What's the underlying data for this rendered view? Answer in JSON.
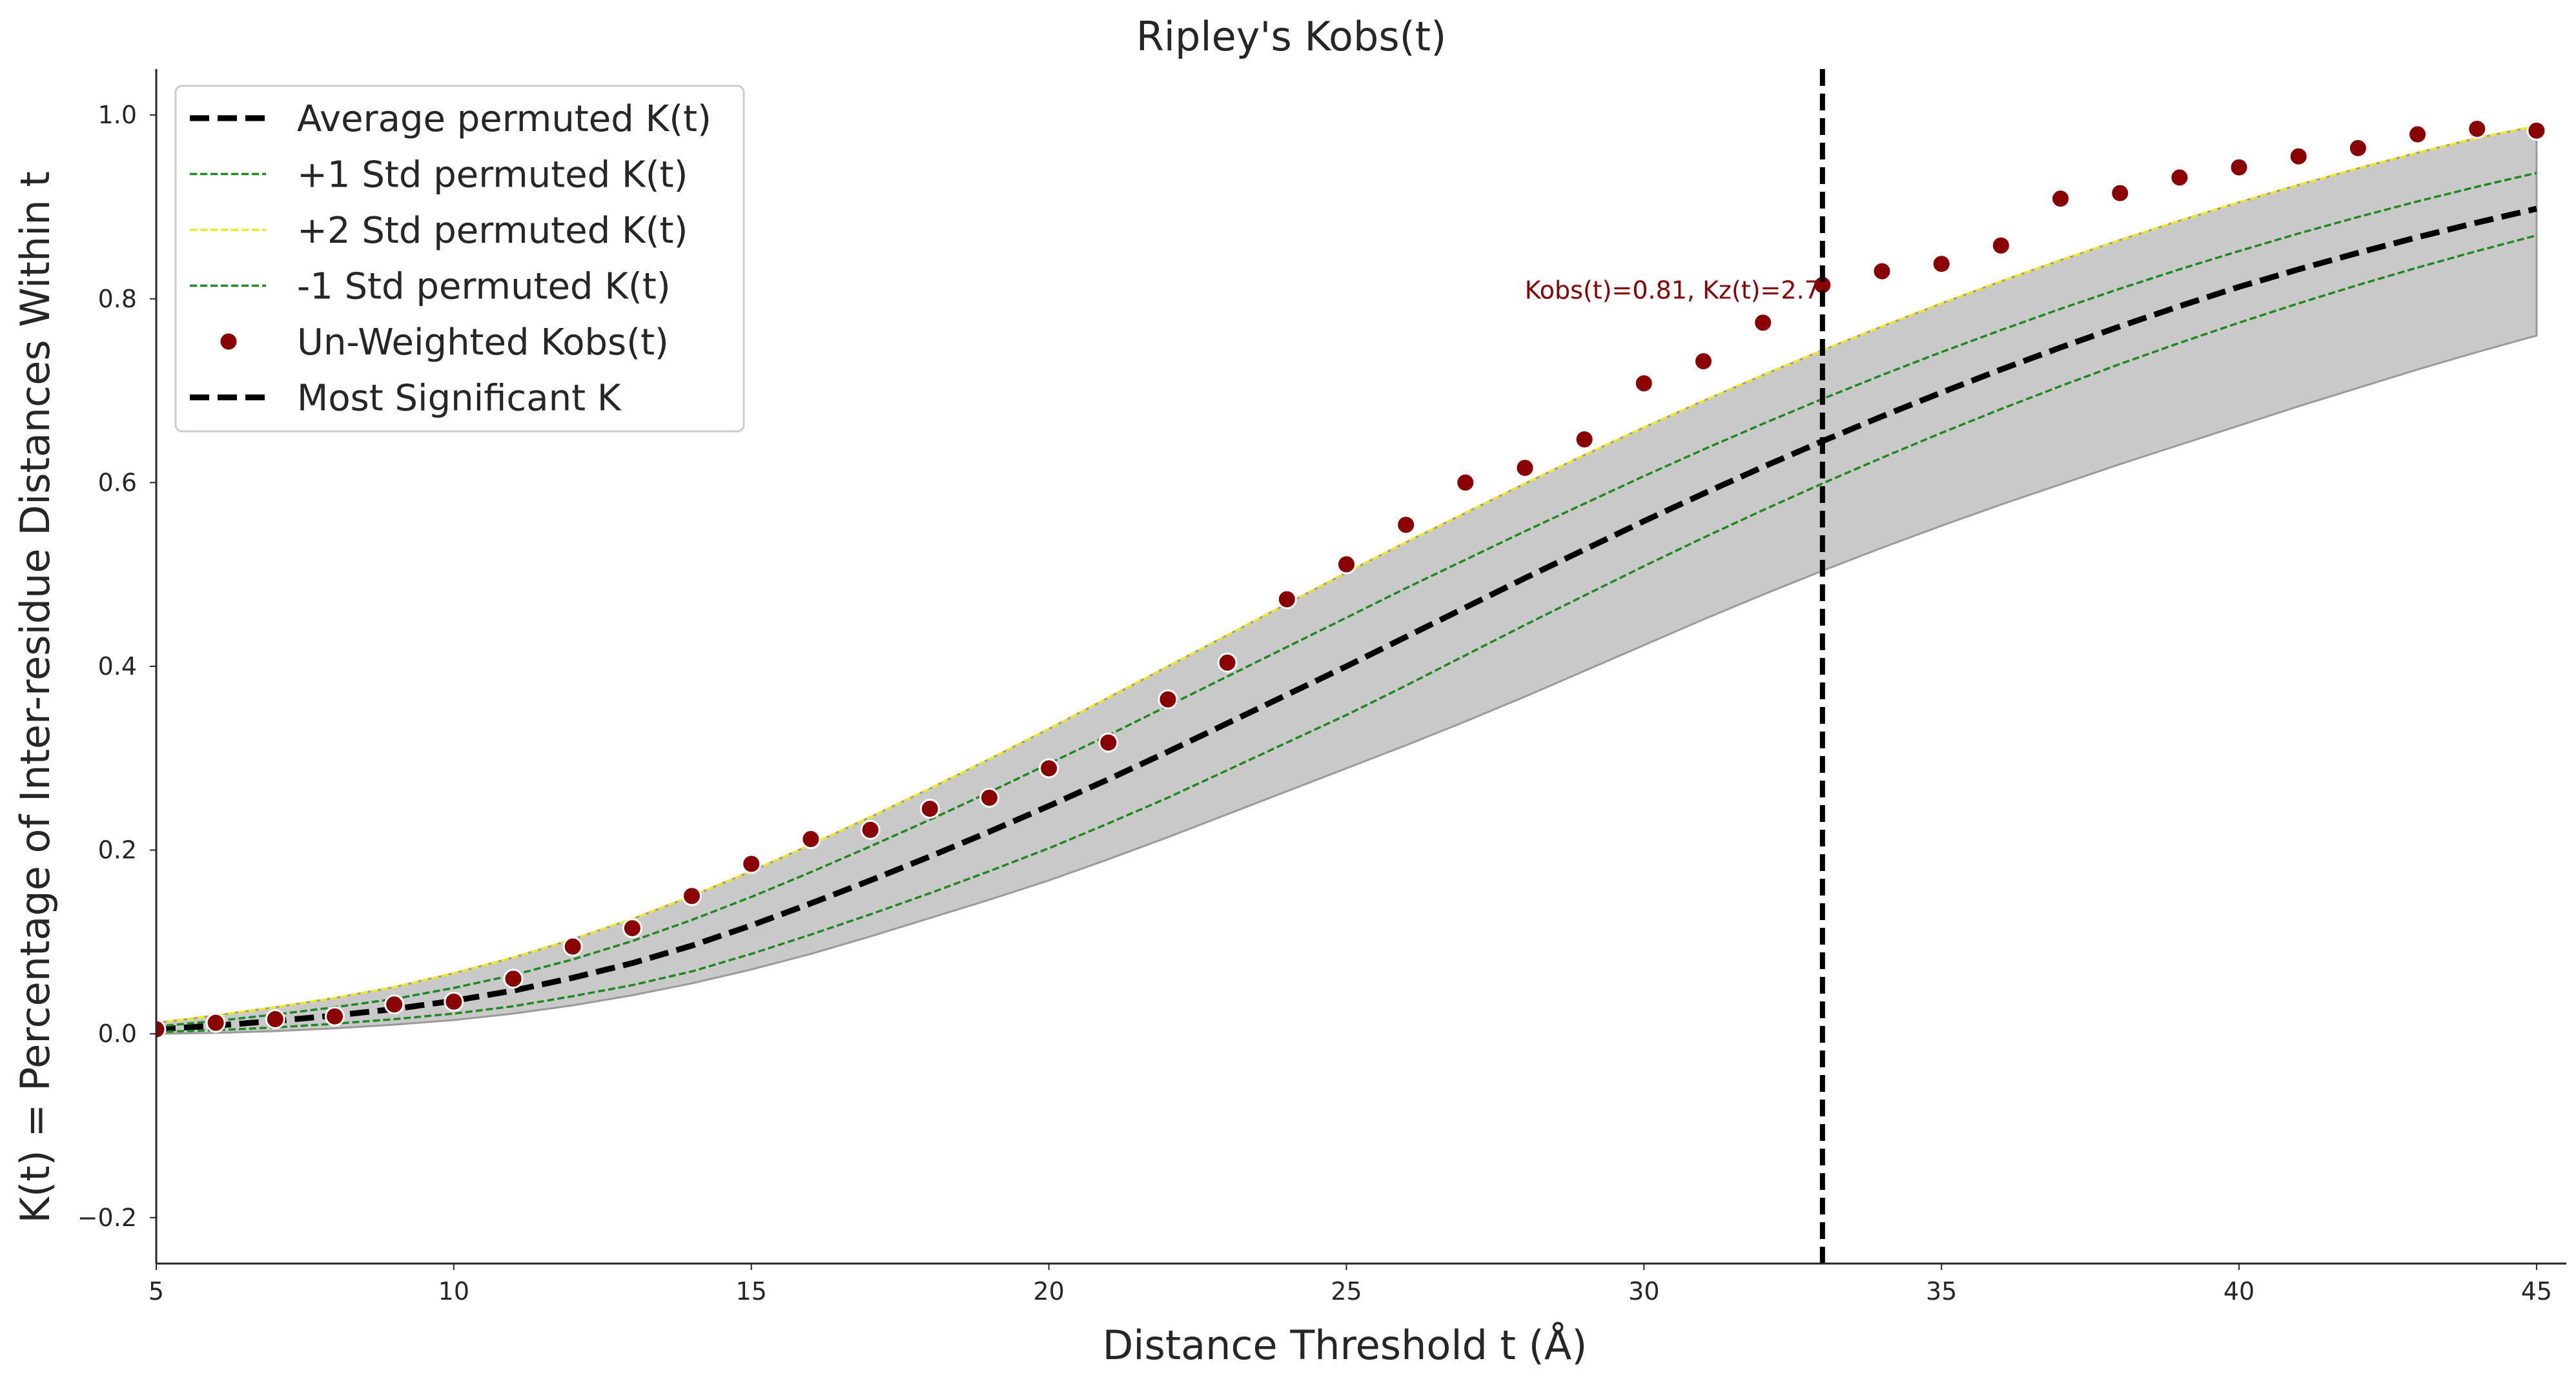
{
  "chart_data": {
    "type": "line",
    "title": "Ripley's Kobs(t)",
    "xlabel": "Distance Threshold t (Å)",
    "ylabel": "K(t) = Percentage of Inter-residue Distances Within t",
    "xlim": [
      5,
      45.5
    ],
    "ylim": [
      -0.25,
      1.05
    ],
    "xticks": [
      5,
      10,
      15,
      20,
      25,
      30,
      35,
      40,
      45
    ],
    "yticks": [
      -0.2,
      0.0,
      0.2,
      0.4,
      0.6,
      0.8,
      1.0
    ],
    "ytick_labels": [
      "−0.2",
      "0.0",
      "0.2",
      "0.4",
      "0.6",
      "0.8",
      "1.0"
    ],
    "x": [
      5,
      6,
      7,
      8,
      9,
      10,
      11,
      12,
      13,
      14,
      15,
      16,
      17,
      18,
      19,
      20,
      21,
      22,
      23,
      24,
      25,
      26,
      27,
      28,
      29,
      30,
      31,
      32,
      33,
      34,
      35,
      36,
      37,
      38,
      39,
      40,
      41,
      42,
      43,
      44,
      45
    ],
    "series": [
      {
        "name": "Average permuted K(t)",
        "style": "dashed-thick",
        "color": "#000000",
        "values": [
          0.005,
          0.009,
          0.014,
          0.02,
          0.027,
          0.036,
          0.047,
          0.061,
          0.077,
          0.096,
          0.118,
          0.142,
          0.167,
          0.193,
          0.22,
          0.248,
          0.277,
          0.307,
          0.338,
          0.369,
          0.4,
          0.432,
          0.464,
          0.496,
          0.527,
          0.558,
          0.588,
          0.617,
          0.645,
          0.672,
          0.698,
          0.723,
          0.747,
          0.77,
          0.792,
          0.813,
          0.832,
          0.85,
          0.867,
          0.883,
          0.898
        ]
      },
      {
        "name": "+1 Std permuted K(t)",
        "style": "dashed-thin",
        "color": "#1e8a1e",
        "values": [
          0.008,
          0.014,
          0.021,
          0.029,
          0.038,
          0.05,
          0.064,
          0.081,
          0.101,
          0.124,
          0.149,
          0.176,
          0.204,
          0.233,
          0.263,
          0.294,
          0.325,
          0.357,
          0.389,
          0.421,
          0.453,
          0.485,
          0.516,
          0.547,
          0.577,
          0.607,
          0.636,
          0.664,
          0.691,
          0.717,
          0.742,
          0.766,
          0.789,
          0.811,
          0.832,
          0.852,
          0.871,
          0.889,
          0.906,
          0.922,
          0.937
        ]
      },
      {
        "name": "+2 Std permuted K(t)",
        "style": "dashed-thin",
        "color": "#f2ea1c",
        "values": [
          0.012,
          0.02,
          0.029,
          0.039,
          0.051,
          0.066,
          0.083,
          0.103,
          0.125,
          0.15,
          0.177,
          0.206,
          0.236,
          0.267,
          0.299,
          0.332,
          0.366,
          0.4,
          0.434,
          0.468,
          0.502,
          0.535,
          0.567,
          0.599,
          0.63,
          0.66,
          0.689,
          0.717,
          0.744,
          0.77,
          0.795,
          0.819,
          0.842,
          0.864,
          0.885,
          0.905,
          0.924,
          0.942,
          0.959,
          0.975,
          0.988
        ]
      },
      {
        "name": "-1 Std permuted K(t)",
        "style": "dashed-thin",
        "color": "#1e8a1e",
        "values": [
          0.002,
          0.004,
          0.007,
          0.011,
          0.016,
          0.022,
          0.03,
          0.041,
          0.053,
          0.068,
          0.087,
          0.108,
          0.13,
          0.153,
          0.177,
          0.202,
          0.229,
          0.257,
          0.287,
          0.317,
          0.347,
          0.379,
          0.412,
          0.445,
          0.477,
          0.509,
          0.54,
          0.57,
          0.599,
          0.627,
          0.654,
          0.68,
          0.705,
          0.729,
          0.752,
          0.774,
          0.795,
          0.815,
          0.834,
          0.852,
          0.869
        ]
      },
      {
        "name": "Un-Weighted Kobs(t)",
        "style": "markers",
        "color": "#8b0000",
        "values": [
          0.005,
          0.012,
          0.016,
          0.019,
          0.032,
          0.035,
          0.06,
          0.095,
          0.115,
          0.15,
          0.185,
          0.212,
          0.222,
          0.245,
          0.257,
          0.289,
          0.317,
          0.364,
          0.404,
          0.473,
          0.511,
          0.554,
          0.6,
          0.616,
          0.647,
          0.708,
          0.732,
          0.774,
          0.815,
          0.83,
          0.838,
          0.858,
          0.909,
          0.915,
          0.932,
          0.943,
          0.955,
          0.964,
          0.979,
          0.985,
          0.983
        ]
      }
    ],
    "band": {
      "color": "#c9c9c9",
      "lower": [
        0.0,
        0.001,
        0.003,
        0.006,
        0.01,
        0.015,
        0.022,
        0.031,
        0.042,
        0.055,
        0.07,
        0.087,
        0.106,
        0.126,
        0.146,
        0.167,
        0.19,
        0.214,
        0.239,
        0.264,
        0.289,
        0.314,
        0.34,
        0.367,
        0.395,
        0.423,
        0.451,
        0.478,
        0.504,
        0.529,
        0.553,
        0.576,
        0.598,
        0.62,
        0.641,
        0.662,
        0.683,
        0.703,
        0.723,
        0.742,
        0.76
      ],
      "upper": [
        0.012,
        0.02,
        0.029,
        0.039,
        0.051,
        0.066,
        0.083,
        0.103,
        0.125,
        0.15,
        0.177,
        0.206,
        0.236,
        0.267,
        0.299,
        0.332,
        0.366,
        0.4,
        0.434,
        0.468,
        0.502,
        0.535,
        0.567,
        0.599,
        0.63,
        0.66,
        0.689,
        0.717,
        0.744,
        0.77,
        0.795,
        0.819,
        0.842,
        0.864,
        0.885,
        0.905,
        0.924,
        0.942,
        0.959,
        0.975,
        0.988
      ]
    },
    "vline": {
      "name": "Most Significant K",
      "x": 33,
      "color": "#000000"
    },
    "annotation": {
      "text": "Kobs(t)=0.81, Kz(t)=2.7",
      "x": 33,
      "y": 0.81,
      "color": "#8b0000"
    },
    "legend": {
      "placement": "top-left",
      "entries": [
        {
          "label": "Average permuted K(t)",
          "kind": "dashed-thick",
          "color": "#000000"
        },
        {
          "label": "+1 Std permuted K(t)",
          "kind": "dashed-thin",
          "color": "#1e8a1e"
        },
        {
          "label": "+2 Std permuted K(t)",
          "kind": "dashed-thin",
          "color": "#f2ea1c"
        },
        {
          "label": "-1 Std permuted K(t)",
          "kind": "dashed-thin",
          "color": "#1e8a1e"
        },
        {
          "label": "Un-Weighted Kobs(t)",
          "kind": "marker",
          "color": "#8b0000"
        },
        {
          "label": "Most Significant K",
          "kind": "dashed-thick",
          "color": "#000000"
        }
      ]
    },
    "grid": false
  }
}
